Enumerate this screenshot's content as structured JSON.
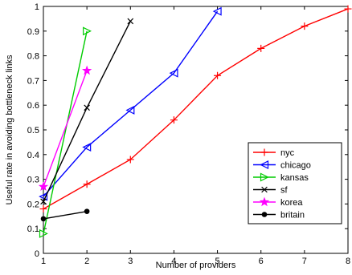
{
  "chart_data": {
    "type": "line",
    "xlabel": "Number of providers",
    "ylabel": "Useful rate in avoiding bottleneck links",
    "xlim": [
      1,
      8
    ],
    "ylim": [
      0,
      1
    ],
    "xticks": [
      1,
      2,
      3,
      4,
      5,
      6,
      7,
      8
    ],
    "yticks": [
      0,
      0.1,
      0.2,
      0.3,
      0.4,
      0.5,
      0.6,
      0.7,
      0.8,
      0.9,
      1
    ],
    "ytick_labels": [
      "0",
      "0.1",
      "0.2",
      "0.3",
      "0.4",
      "0.5",
      "0.6",
      "0.7",
      "0.8",
      "0.9",
      "1"
    ],
    "xtick_labels": [
      "1",
      "2",
      "3",
      "4",
      "5",
      "6",
      "7",
      "8"
    ],
    "grid": false,
    "legend_position": "lower-right",
    "series": [
      {
        "name": "nyc",
        "color": "#ff0000",
        "marker": "plus",
        "x": [
          1,
          2,
          3,
          4,
          5,
          6,
          7,
          8
        ],
        "y": [
          0.18,
          0.28,
          0.38,
          0.54,
          0.72,
          0.83,
          0.92,
          0.99
        ]
      },
      {
        "name": "chicago",
        "color": "#0000ff",
        "marker": "triangle-left",
        "x": [
          1,
          2,
          3,
          4,
          5
        ],
        "y": [
          0.23,
          0.43,
          0.58,
          0.73,
          0.98
        ]
      },
      {
        "name": "kansas",
        "color": "#00cc00",
        "marker": "triangle-right",
        "x": [
          1,
          2
        ],
        "y": [
          0.08,
          0.9
        ]
      },
      {
        "name": "sf",
        "color": "#000000",
        "marker": "x",
        "x": [
          1,
          2,
          3
        ],
        "y": [
          0.21,
          0.59,
          0.94
        ]
      },
      {
        "name": "korea",
        "color": "#ff00ff",
        "marker": "star",
        "x": [
          1,
          2
        ],
        "y": [
          0.27,
          0.74
        ]
      },
      {
        "name": "britain",
        "color": "#000000",
        "marker": "dot",
        "x": [
          1,
          2
        ],
        "y": [
          0.14,
          0.17
        ]
      }
    ]
  }
}
